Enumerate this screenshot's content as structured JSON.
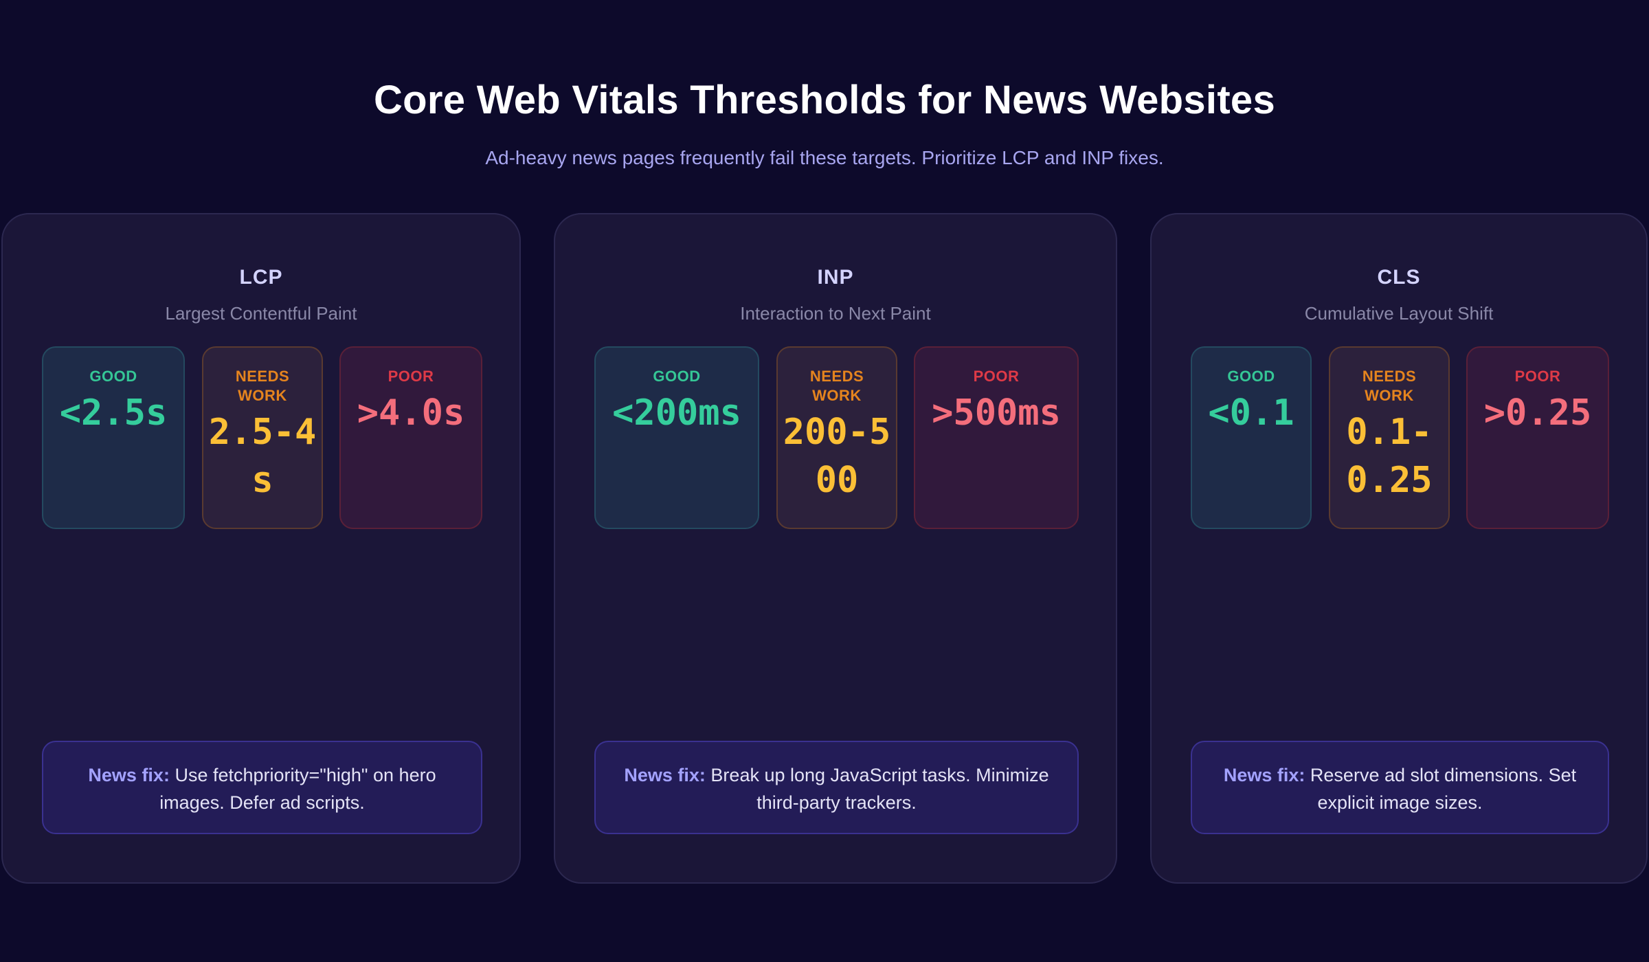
{
  "header": {
    "title": "Core Web Vitals Thresholds for News Websites",
    "subtitle": "Ad-heavy news pages frequently fail these targets. Prioritize LCP and INP fixes."
  },
  "colors": {
    "background": "#0d0a2b",
    "card": "#1b1638",
    "good": "#35cd9c",
    "needs_work": "#fbbf36",
    "poor": "#f46e7c",
    "fix_accent": "#a3a2ff"
  },
  "fix_label": "News fix:",
  "cards": [
    {
      "abbr": "LCP",
      "name": "Largest Contentful Paint",
      "tiers": {
        "good": {
          "label": "GOOD",
          "value": "<2.5s"
        },
        "needs": {
          "label": "NEEDS WORK",
          "value": "2.5-4s"
        },
        "poor": {
          "label": "POOR",
          "value": ">4.0s"
        }
      },
      "fix": "Use fetchpriority=\"high\" on hero images. Defer ad scripts."
    },
    {
      "abbr": "INP",
      "name": "Interaction to Next Paint",
      "tiers": {
        "good": {
          "label": "GOOD",
          "value": "<200ms"
        },
        "needs": {
          "label": "NEEDS WORK",
          "value": "200-500"
        },
        "poor": {
          "label": "POOR",
          "value": ">500ms"
        }
      },
      "fix": "Break up long JavaScript tasks. Minimize third-party trackers."
    },
    {
      "abbr": "CLS",
      "name": "Cumulative Layout Shift",
      "tiers": {
        "good": {
          "label": "GOOD",
          "value": "<0.1"
        },
        "needs": {
          "label": "NEEDS WORK",
          "value": "0.1-0.25"
        },
        "poor": {
          "label": "POOR",
          "value": ">0.25"
        }
      },
      "fix": "Reserve ad slot dimensions. Set explicit image sizes."
    }
  ]
}
